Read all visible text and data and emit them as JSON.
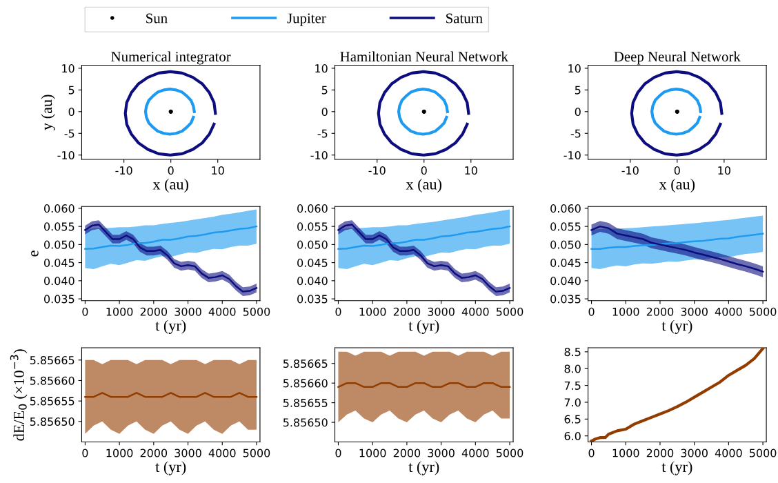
{
  "chart_data": [
    {
      "type": "line",
      "title": "Numerical integrator",
      "xlabel": "x (au)",
      "ylabel": "y (au)",
      "legend": "top",
      "xlim": [
        -19,
        19
      ],
      "ylim": [
        -11,
        10.7
      ],
      "xticks": [
        -10,
        0,
        10
      ],
      "yticks": [
        -10,
        -5,
        0,
        5,
        10
      ],
      "series": [
        {
          "name": "Sun",
          "type": "scatter",
          "color": "#000000",
          "x": [
            0
          ],
          "values": [
            0
          ]
        },
        {
          "name": "Jupiter",
          "color": "#1e9bf0",
          "x": [
            5.0,
            4.8,
            4.3,
            3.4,
            2.4,
            1.1,
            -0.2,
            -1.5,
            -2.8,
            -3.8,
            -4.7,
            -5.2,
            -5.4,
            -5.2,
            -4.7,
            -3.8,
            -2.8,
            -1.5,
            -0.2,
            1.1,
            2.4,
            3.4,
            4.3,
            4.8
          ],
          "values": [
            0,
            1.3,
            2.6,
            3.6,
            4.5,
            5.0,
            5.2,
            5.0,
            4.5,
            3.6,
            2.6,
            1.3,
            0,
            -1.3,
            -2.6,
            -3.6,
            -4.5,
            -5.0,
            -5.2,
            -5.0,
            -4.5,
            -3.6,
            -2.6,
            -1.3
          ]
        },
        {
          "name": "Saturn",
          "color": "#0d0d80",
          "x": [
            9.5,
            9.2,
            8.2,
            6.7,
            4.7,
            2.4,
            -0.1,
            -2.6,
            -4.9,
            -6.9,
            -8.4,
            -9.4,
            -9.7,
            -9.4,
            -8.4,
            -6.9,
            -4.9,
            -2.6,
            -0.1,
            2.4,
            4.7,
            6.7,
            8.2,
            9.2
          ],
          "values": [
            -0.4,
            2.1,
            4.4,
            6.4,
            7.9,
            8.9,
            9.2,
            8.9,
            7.9,
            6.4,
            4.4,
            2.1,
            -0.4,
            -2.9,
            -5.2,
            -7.2,
            -8.7,
            -9.7,
            -10.0,
            -9.7,
            -8.7,
            -7.2,
            -5.2,
            -2.9
          ]
        }
      ]
    },
    {
      "type": "line",
      "title": "Hamiltonian Neural Network",
      "xlabel": "x (au)",
      "xlim": [
        -19,
        19
      ],
      "ylim": [
        -11,
        10.7
      ],
      "xticks": [
        -10,
        0,
        10
      ],
      "yticks": [
        -10,
        -5,
        0,
        5,
        10
      ],
      "series": [
        {
          "type": "scatter",
          "color": "#000000",
          "x": [
            0
          ],
          "values": [
            0
          ]
        },
        {
          "color": "#1e9bf0",
          "x": [
            5.0,
            4.8,
            4.3,
            3.4,
            2.4,
            1.1,
            -0.2,
            -1.5,
            -2.8,
            -3.8,
            -4.7,
            -5.2,
            -5.4,
            -5.2,
            -4.7,
            -3.8,
            -2.8,
            -1.5,
            -0.2,
            1.1,
            2.4,
            3.4,
            4.3,
            4.8
          ],
          "values": [
            0,
            1.3,
            2.6,
            3.6,
            4.5,
            5.0,
            5.2,
            5.0,
            4.5,
            3.6,
            2.6,
            1.3,
            0,
            -1.3,
            -2.6,
            -3.6,
            -4.5,
            -5.0,
            -5.2,
            -5.0,
            -4.5,
            -3.6,
            -2.6,
            -1.3
          ]
        },
        {
          "color": "#0d0d80",
          "x": [
            9.5,
            9.2,
            8.2,
            6.7,
            4.7,
            2.4,
            -0.1,
            -2.6,
            -4.9,
            -6.9,
            -8.4,
            -9.4,
            -9.7,
            -9.4,
            -8.4,
            -6.9,
            -4.9,
            -2.6,
            -0.1,
            2.4,
            4.7,
            6.7,
            8.2,
            9.2
          ],
          "values": [
            -0.4,
            2.1,
            4.4,
            6.4,
            7.9,
            8.9,
            9.2,
            8.9,
            7.9,
            6.4,
            4.4,
            2.1,
            -0.4,
            -2.9,
            -5.2,
            -7.2,
            -8.7,
            -9.7,
            -10.0,
            -9.7,
            -8.7,
            -7.2,
            -5.2,
            -2.9
          ]
        }
      ]
    },
    {
      "type": "line",
      "title": "Deep Neural Network",
      "xlabel": "x (au)",
      "xlim": [
        -19,
        19
      ],
      "ylim": [
        -11,
        10.7
      ],
      "xticks": [
        -10,
        0,
        10
      ],
      "yticks": [
        -10,
        -5,
        0,
        5,
        10
      ],
      "series": [
        {
          "type": "scatter",
          "color": "#000000",
          "x": [
            0
          ],
          "values": [
            0
          ]
        },
        {
          "color": "#1e9bf0",
          "x": [
            5.0,
            4.8,
            4.3,
            3.4,
            2.4,
            1.1,
            -0.2,
            -1.5,
            -2.8,
            -3.8,
            -4.7,
            -5.2,
            -5.4,
            -5.2,
            -4.7,
            -3.8,
            -2.8,
            -1.5,
            -0.2,
            1.1,
            2.4,
            3.4,
            4.3,
            4.8
          ],
          "values": [
            0,
            1.3,
            2.6,
            3.6,
            4.5,
            5.0,
            5.2,
            5.0,
            4.5,
            3.6,
            2.6,
            1.3,
            0,
            -1.3,
            -2.6,
            -3.6,
            -4.5,
            -5.0,
            -5.2,
            -5.0,
            -4.5,
            -3.6,
            -2.6,
            -1.3
          ]
        },
        {
          "color": "#0d0d80",
          "x": [
            9.5,
            9.2,
            8.2,
            6.7,
            4.7,
            2.4,
            -0.1,
            -2.6,
            -4.9,
            -6.9,
            -8.4,
            -9.4,
            -9.7,
            -9.4,
            -8.4,
            -6.9,
            -4.9,
            -2.6,
            -0.1,
            2.4,
            4.7,
            6.7,
            8.2,
            9.2
          ],
          "values": [
            -0.4,
            2.1,
            4.4,
            6.4,
            7.9,
            8.9,
            9.2,
            8.9,
            7.9,
            6.4,
            4.4,
            2.1,
            -0.4,
            -2.9,
            -5.2,
            -7.2,
            -8.7,
            -9.7,
            -10.0,
            -9.7,
            -8.7,
            -7.2,
            -5.2,
            -2.9
          ]
        }
      ]
    },
    {
      "type": "line",
      "xlabel": "t (yr)",
      "ylabel": "e",
      "xlim": [
        -100,
        5100
      ],
      "ylim": [
        0.0345,
        0.0605
      ],
      "xticks": [
        0,
        1000,
        2000,
        3000,
        4000,
        5000
      ],
      "yticks": [
        {
          "value": 0.035,
          "label": "0.035"
        },
        {
          "value": 0.04,
          "label": "0.040"
        },
        {
          "value": 0.045,
          "label": "0.045"
        },
        {
          "value": 0.05,
          "label": "0.050"
        },
        {
          "value": 0.055,
          "label": "0.055"
        },
        {
          "value": 0.06,
          "label": "0.060"
        }
      ],
      "series": [
        {
          "color": "#1e9bf0",
          "x": [
            0,
            250,
            500,
            750,
            1000,
            1250,
            1500,
            1750,
            2000,
            2250,
            2500,
            2750,
            3000,
            3250,
            3500,
            3750,
            4000,
            4250,
            4500,
            4750,
            5000
          ],
          "values": [
            0.0488,
            0.0489,
            0.0493,
            0.0497,
            0.0496,
            0.0499,
            0.0504,
            0.0504,
            0.0508,
            0.0513,
            0.0513,
            0.0517,
            0.0522,
            0.0524,
            0.0528,
            0.0533,
            0.0535,
            0.0539,
            0.0543,
            0.0545,
            0.055
          ],
          "lower": [
            0.0435,
            0.0432,
            0.044,
            0.0447,
            0.0443,
            0.045,
            0.0457,
            0.0455,
            0.0462,
            0.0468,
            0.0466,
            0.0472,
            0.0478,
            0.0477,
            0.0483,
            0.0488,
            0.0487,
            0.0493,
            0.0497,
            0.0497,
            0.0502
          ],
          "upper": [
            0.054,
            0.0545,
            0.0545,
            0.0546,
            0.0548,
            0.0548,
            0.055,
            0.0553,
            0.0553,
            0.0557,
            0.056,
            0.0562,
            0.0566,
            0.057,
            0.0573,
            0.0577,
            0.0582,
            0.0585,
            0.0589,
            0.0593,
            0.0597
          ]
        },
        {
          "color": "#0d0d80",
          "x": [
            0,
            200,
            400,
            600,
            800,
            1000,
            1200,
            1400,
            1600,
            1800,
            2000,
            2200,
            2400,
            2600,
            2800,
            3000,
            3200,
            3400,
            3600,
            3800,
            4000,
            4200,
            4400,
            4600,
            4800,
            5000
          ],
          "values": [
            0.054,
            0.0552,
            0.0555,
            0.0535,
            0.0515,
            0.0515,
            0.0525,
            0.0515,
            0.0492,
            0.0482,
            0.0482,
            0.0485,
            0.047,
            0.0448,
            0.044,
            0.0443,
            0.044,
            0.042,
            0.0408,
            0.041,
            0.0415,
            0.0405,
            0.0385,
            0.037,
            0.0372,
            0.038
          ],
          "lower": [
            0.0528,
            0.054,
            0.0543,
            0.0523,
            0.0503,
            0.0503,
            0.0513,
            0.0503,
            0.048,
            0.047,
            0.047,
            0.0473,
            0.0458,
            0.0436,
            0.0428,
            0.0431,
            0.0428,
            0.0408,
            0.0396,
            0.0398,
            0.0403,
            0.0393,
            0.0373,
            0.0358,
            0.036,
            0.0368
          ],
          "upper": [
            0.0552,
            0.0564,
            0.0567,
            0.0547,
            0.0527,
            0.0527,
            0.0537,
            0.0527,
            0.0504,
            0.0494,
            0.0494,
            0.0497,
            0.0482,
            0.046,
            0.0452,
            0.0455,
            0.0452,
            0.0432,
            0.042,
            0.0422,
            0.0427,
            0.0417,
            0.0397,
            0.0382,
            0.0384,
            0.0392
          ]
        }
      ]
    },
    {
      "type": "line",
      "xlabel": "t (yr)",
      "xlim": [
        -100,
        5100
      ],
      "ylim": [
        0.0345,
        0.0605
      ],
      "xticks": [
        0,
        1000,
        2000,
        3000,
        4000,
        5000
      ],
      "yticks": [
        {
          "value": 0.035,
          "label": "0.035"
        },
        {
          "value": 0.04,
          "label": "0.040"
        },
        {
          "value": 0.045,
          "label": "0.045"
        },
        {
          "value": 0.05,
          "label": "0.050"
        },
        {
          "value": 0.055,
          "label": "0.055"
        },
        {
          "value": 0.06,
          "label": "0.060"
        }
      ],
      "series": [
        {
          "color": "#1e9bf0",
          "x": [
            0,
            250,
            500,
            750,
            1000,
            1250,
            1500,
            1750,
            2000,
            2250,
            2500,
            2750,
            3000,
            3250,
            3500,
            3750,
            4000,
            4250,
            4500,
            4750,
            5000
          ],
          "values": [
            0.0488,
            0.0489,
            0.0493,
            0.0497,
            0.0496,
            0.0499,
            0.0504,
            0.0504,
            0.0508,
            0.0513,
            0.0513,
            0.0517,
            0.0522,
            0.0524,
            0.0528,
            0.0533,
            0.0535,
            0.0539,
            0.0543,
            0.0545,
            0.055
          ],
          "lower": [
            0.0435,
            0.0432,
            0.044,
            0.0447,
            0.0443,
            0.045,
            0.0457,
            0.0455,
            0.0462,
            0.0468,
            0.0466,
            0.0472,
            0.0478,
            0.0477,
            0.0483,
            0.0488,
            0.0487,
            0.0493,
            0.0497,
            0.0497,
            0.0502
          ],
          "upper": [
            0.054,
            0.0545,
            0.0545,
            0.0546,
            0.0548,
            0.0548,
            0.055,
            0.0553,
            0.0553,
            0.0557,
            0.056,
            0.0562,
            0.0566,
            0.057,
            0.0573,
            0.0577,
            0.0582,
            0.0585,
            0.0589,
            0.0593,
            0.0597
          ]
        },
        {
          "color": "#0d0d80",
          "x": [
            0,
            200,
            400,
            600,
            800,
            1000,
            1200,
            1400,
            1600,
            1800,
            2000,
            2200,
            2400,
            2600,
            2800,
            3000,
            3200,
            3400,
            3600,
            3800,
            4000,
            4200,
            4400,
            4600,
            4800,
            5000
          ],
          "values": [
            0.054,
            0.0552,
            0.0555,
            0.0535,
            0.0515,
            0.0515,
            0.0525,
            0.0515,
            0.0492,
            0.0482,
            0.0482,
            0.0485,
            0.047,
            0.0448,
            0.044,
            0.0443,
            0.044,
            0.042,
            0.0408,
            0.041,
            0.0415,
            0.0405,
            0.0385,
            0.037,
            0.0372,
            0.038
          ],
          "lower": [
            0.0528,
            0.054,
            0.0543,
            0.0523,
            0.0503,
            0.0503,
            0.0513,
            0.0503,
            0.048,
            0.047,
            0.047,
            0.0473,
            0.0458,
            0.0436,
            0.0428,
            0.0431,
            0.0428,
            0.0408,
            0.0396,
            0.0398,
            0.0403,
            0.0393,
            0.0373,
            0.0358,
            0.036,
            0.0368
          ],
          "upper": [
            0.0552,
            0.0564,
            0.0567,
            0.0547,
            0.0527,
            0.0527,
            0.0537,
            0.0527,
            0.0504,
            0.0494,
            0.0494,
            0.0497,
            0.0482,
            0.046,
            0.0452,
            0.0455,
            0.0452,
            0.0432,
            0.042,
            0.0422,
            0.0427,
            0.0417,
            0.0397,
            0.0382,
            0.0384,
            0.0392
          ]
        }
      ]
    },
    {
      "type": "line",
      "xlabel": "t (yr)",
      "xlim": [
        -100,
        5100
      ],
      "ylim": [
        0.0345,
        0.0605
      ],
      "xticks": [
        0,
        1000,
        2000,
        3000,
        4000,
        5000
      ],
      "yticks": [
        {
          "value": 0.035,
          "label": "0.035"
        },
        {
          "value": 0.04,
          "label": "0.040"
        },
        {
          "value": 0.045,
          "label": "0.045"
        },
        {
          "value": 0.05,
          "label": "0.050"
        },
        {
          "value": 0.055,
          "label": "0.055"
        },
        {
          "value": 0.06,
          "label": "0.060"
        }
      ],
      "series": [
        {
          "color": "#1e9bf0",
          "x": [
            0,
            250,
            500,
            750,
            1000,
            1250,
            1500,
            1750,
            2000,
            2250,
            2500,
            2750,
            3000,
            3250,
            3500,
            3750,
            4000,
            4250,
            4500,
            4750,
            5000
          ],
          "values": [
            0.0488,
            0.0488,
            0.0491,
            0.0493,
            0.0493,
            0.0496,
            0.0498,
            0.0499,
            0.0501,
            0.0503,
            0.0504,
            0.0507,
            0.0509,
            0.051,
            0.0513,
            0.0516,
            0.0517,
            0.0521,
            0.0524,
            0.0527,
            0.053
          ],
          "lower": [
            0.0435,
            0.0432,
            0.0438,
            0.0442,
            0.044,
            0.0445,
            0.0448,
            0.0447,
            0.045,
            0.0453,
            0.0452,
            0.0456,
            0.0459,
            0.0458,
            0.0462,
            0.0465,
            0.0465,
            0.047,
            0.0474,
            0.0476,
            0.048
          ],
          "upper": [
            0.054,
            0.0543,
            0.0543,
            0.0544,
            0.0545,
            0.0546,
            0.0548,
            0.055,
            0.0551,
            0.0553,
            0.0555,
            0.0557,
            0.0559,
            0.0561,
            0.0563,
            0.0566,
            0.0568,
            0.0571,
            0.0574,
            0.0577,
            0.058
          ]
        },
        {
          "color": "#0d0d80",
          "x": [
            0,
            250,
            500,
            750,
            1000,
            1250,
            1500,
            1750,
            2000,
            2250,
            2500,
            2750,
            3000,
            3250,
            3500,
            3750,
            4000,
            4250,
            4500,
            4750,
            5000
          ],
          "values": [
            0.054,
            0.055,
            0.0545,
            0.053,
            0.0525,
            0.052,
            0.0515,
            0.0505,
            0.05,
            0.0495,
            0.049,
            0.0485,
            0.0478,
            0.0472,
            0.0466,
            0.046,
            0.0453,
            0.0446,
            0.044,
            0.0433,
            0.0425
          ],
          "lower": [
            0.0525,
            0.0535,
            0.053,
            0.0515,
            0.051,
            0.0505,
            0.05,
            0.049,
            0.0485,
            0.048,
            0.0475,
            0.047,
            0.0463,
            0.0457,
            0.0451,
            0.0445,
            0.0438,
            0.0431,
            0.0425,
            0.0418,
            0.041
          ],
          "upper": [
            0.0555,
            0.0565,
            0.056,
            0.0545,
            0.054,
            0.0535,
            0.053,
            0.052,
            0.0515,
            0.051,
            0.0505,
            0.05,
            0.0493,
            0.0487,
            0.0481,
            0.0475,
            0.0468,
            0.0461,
            0.0455,
            0.0448,
            0.044
          ]
        }
      ]
    },
    {
      "type": "line",
      "xlabel": "t (yr)",
      "ylabel": "dE/E$_{0}$ (×10$^{−3}$)",
      "xlim": [
        -100,
        5100
      ],
      "ylim": [
        5.85645,
        5.85668
      ],
      "xticks": [
        0,
        1000,
        2000,
        3000,
        4000,
        5000
      ],
      "yticks": [
        {
          "value": 5.8565,
          "label": "5.85650"
        },
        {
          "value": 5.85655,
          "label": "5.85655"
        },
        {
          "value": 5.8566,
          "label": "5.85660"
        },
        {
          "value": 5.85665,
          "label": "5.85665"
        }
      ],
      "series": [
        {
          "color": "#923c00",
          "x": [
            0,
            250,
            500,
            750,
            1000,
            1250,
            1500,
            1750,
            2000,
            2250,
            2500,
            2750,
            3000,
            3250,
            3500,
            3750,
            4000,
            4250,
            4500,
            4750,
            5000
          ],
          "values": [
            5.85656,
            5.85656,
            5.85657,
            5.85656,
            5.85656,
            5.85656,
            5.85657,
            5.85656,
            5.85656,
            5.85656,
            5.85657,
            5.85656,
            5.85656,
            5.85656,
            5.85657,
            5.85656,
            5.85656,
            5.85656,
            5.85657,
            5.85656,
            5.85656
          ],
          "lower": [
            5.85647,
            5.85649,
            5.8565,
            5.85648,
            5.85647,
            5.85649,
            5.8565,
            5.85648,
            5.85647,
            5.85649,
            5.8565,
            5.85648,
            5.85647,
            5.85649,
            5.8565,
            5.85648,
            5.85647,
            5.85649,
            5.8565,
            5.85648,
            5.85648
          ],
          "upper": [
            5.85665,
            5.85665,
            5.85664,
            5.85665,
            5.85665,
            5.85665,
            5.85664,
            5.85665,
            5.85665,
            5.85665,
            5.85664,
            5.85665,
            5.85665,
            5.85665,
            5.85664,
            5.85665,
            5.85665,
            5.85665,
            5.85664,
            5.85665,
            5.85665
          ]
        }
      ]
    },
    {
      "type": "line",
      "xlabel": "t (yr)",
      "xlim": [
        -100,
        5100
      ],
      "ylim": [
        5.85645,
        5.85669
      ],
      "xticks": [
        0,
        1000,
        2000,
        3000,
        4000,
        5000
      ],
      "yticks": [
        {
          "value": 5.8565,
          "label": "5.85650"
        },
        {
          "value": 5.85655,
          "label": "5.85655"
        },
        {
          "value": 5.8566,
          "label": "5.85660"
        },
        {
          "value": 5.85665,
          "label": "5.85665"
        }
      ],
      "series": [
        {
          "color": "#923c00",
          "x": [
            0,
            250,
            500,
            750,
            1000,
            1250,
            1500,
            1750,
            2000,
            2250,
            2500,
            2750,
            3000,
            3250,
            3500,
            3750,
            4000,
            4250,
            4500,
            4750,
            5000
          ],
          "values": [
            5.85659,
            5.8566,
            5.8566,
            5.85659,
            5.85659,
            5.8566,
            5.8566,
            5.85659,
            5.85659,
            5.8566,
            5.8566,
            5.85659,
            5.85659,
            5.8566,
            5.8566,
            5.85659,
            5.85659,
            5.8566,
            5.8566,
            5.85659,
            5.85659
          ],
          "lower": [
            5.8565,
            5.85652,
            5.85653,
            5.85651,
            5.8565,
            5.85652,
            5.85653,
            5.85651,
            5.8565,
            5.85652,
            5.85653,
            5.85651,
            5.8565,
            5.85652,
            5.85653,
            5.85651,
            5.8565,
            5.85652,
            5.85653,
            5.85651,
            5.85651
          ],
          "upper": [
            5.85668,
            5.85668,
            5.85667,
            5.85668,
            5.85668,
            5.85668,
            5.85667,
            5.85668,
            5.85668,
            5.85668,
            5.85667,
            5.85668,
            5.85668,
            5.85668,
            5.85667,
            5.85668,
            5.85668,
            5.85668,
            5.85667,
            5.85668,
            5.85668
          ]
        }
      ]
    },
    {
      "type": "line",
      "xlabel": "t (yr)",
      "xlim": [
        -100,
        5100
      ],
      "ylim": [
        5.82,
        8.62
      ],
      "xticks": [
        0,
        1000,
        2000,
        3000,
        4000,
        5000
      ],
      "yticks": [
        {
          "value": 6,
          "label": "6.0"
        },
        {
          "value": 6.5,
          "label": "6.5"
        },
        {
          "value": 7,
          "label": "7.0"
        },
        {
          "value": 7.5,
          "label": "7.5"
        },
        {
          "value": 8,
          "label": "8.0"
        },
        {
          "value": 8.5,
          "label": "8.5"
        }
      ],
      "series": [
        {
          "color": "#923c00",
          "x": [
            0,
            100,
            250,
            400,
            500,
            750,
            1000,
            1250,
            1500,
            1750,
            2000,
            2250,
            2500,
            2750,
            3000,
            3250,
            3500,
            3750,
            4000,
            4250,
            4500,
            4750,
            5000
          ],
          "values": [
            5.85,
            5.9,
            5.95,
            5.95,
            6.05,
            6.15,
            6.2,
            6.35,
            6.45,
            6.55,
            6.65,
            6.75,
            6.87,
            7.0,
            7.15,
            7.3,
            7.45,
            7.6,
            7.8,
            7.95,
            8.1,
            8.3,
            8.6
          ]
        }
      ]
    }
  ]
}
